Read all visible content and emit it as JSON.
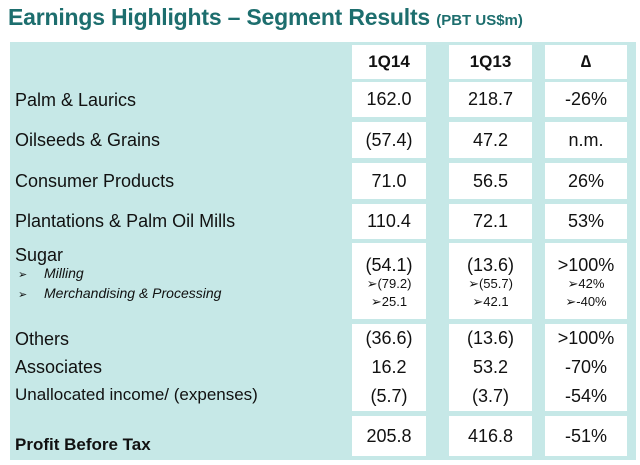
{
  "title": "Earnings Highlights – Segment Results",
  "subtitle": "(PBT US$m)",
  "columns": [
    "1Q14",
    "1Q13",
    "∆"
  ],
  "rows": [
    {
      "label": "Palm & Laurics",
      "v1": "162.0",
      "v2": "218.7",
      "d": "-26%"
    },
    {
      "label": "Oilseeds & Grains",
      "v1": "(57.4)",
      "v2": "47.2",
      "d": "n.m."
    },
    {
      "label": "Consumer Products",
      "v1": "71.0",
      "v2": "56.5",
      "d": "26%"
    },
    {
      "label": "Plantations & Palm Oil Mills",
      "v1": "110.4",
      "v2": "72.1",
      "d": "53%"
    },
    {
      "label": "Sugar",
      "v1": "(54.1)",
      "v2": "(13.6)",
      "d": ">100%",
      "subs": [
        {
          "label": "Milling",
          "v1": "➢(79.2)",
          "v2": "➢(55.7)",
          "d": "➢42%"
        },
        {
          "label": "Merchandising & Processing",
          "v1": "➢25.1",
          "v2": "➢42.1",
          "d": "➢-40%"
        }
      ]
    },
    {
      "label": "Others",
      "v1": "(36.6)",
      "v2": "(13.6)",
      "d": ">100%"
    },
    {
      "label": "Associates",
      "v1": "16.2",
      "v2": "53.2",
      "d": "-70%"
    },
    {
      "label": "Unallocated income/ (expenses)",
      "v1": "(5.7)",
      "v2": "(3.7)",
      "d": "-54%"
    },
    {
      "label": "Profit Before Tax",
      "v1": "205.8",
      "v2": "416.8",
      "d": "-51%"
    }
  ]
}
